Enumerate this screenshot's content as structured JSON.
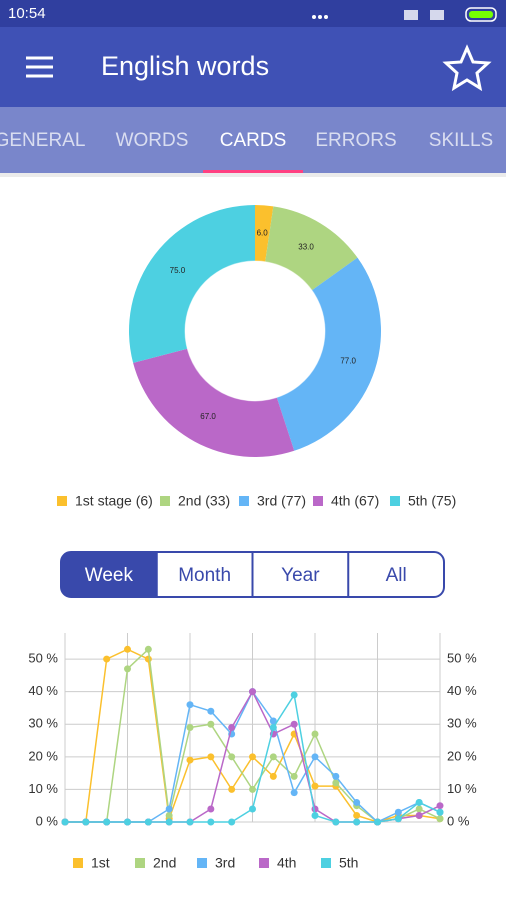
{
  "status_bar": {
    "time": "10:54"
  },
  "app_bar": {
    "title": "English words"
  },
  "tabs": {
    "items": [
      "GENERAL",
      "WORDS",
      "CARDS",
      "ERRORS",
      "SKILLS"
    ],
    "selected": 2
  },
  "range_tabs": {
    "items": [
      "Week",
      "Month",
      "Year",
      "All"
    ],
    "selected": 0
  },
  "chart_data": [
    {
      "type": "pie",
      "donut": true,
      "categories": [
        "1st stage (6)",
        "2nd (33)",
        "3rd (77)",
        "4th (67)",
        "5th (75)"
      ],
      "values": [
        6,
        33,
        77,
        67,
        75
      ],
      "value_labels": [
        "6.0",
        "33.0",
        "77.0",
        "67.0",
        "75.0"
      ],
      "colors": [
        "#fbc02d",
        "#aed581",
        "#64b5f6",
        "#ba68c8",
        "#4dd0e1"
      ]
    },
    {
      "type": "line",
      "categories": [
        null,
        null,
        null,
        null,
        null,
        null,
        null,
        null,
        null,
        null,
        null,
        null,
        null,
        null,
        null,
        null,
        null,
        null,
        null
      ],
      "ylim": [
        0,
        58
      ],
      "yticks": [
        {
          "value": 0,
          "label": "0 %"
        },
        {
          "value": 10,
          "label": "10 %"
        },
        {
          "value": 20,
          "label": "20 %"
        },
        {
          "value": 30,
          "label": "30 %"
        },
        {
          "value": 40,
          "label": "40 %"
        },
        {
          "value": 50,
          "label": "50 %"
        }
      ],
      "y2lim": [
        0,
        58
      ],
      "y2ticks": [
        {
          "value": 0,
          "label": "0 %"
        },
        {
          "value": 10,
          "label": "10 %"
        },
        {
          "value": 20,
          "label": "20 %"
        },
        {
          "value": 30,
          "label": "30 %"
        },
        {
          "value": 40,
          "label": "40 %"
        },
        {
          "value": 50,
          "label": "50 %"
        }
      ],
      "grid": true,
      "series": [
        {
          "name": "1st",
          "color": "#fbc02d",
          "values": [
            0,
            0,
            50,
            53,
            50,
            1,
            19,
            20,
            10,
            20,
            14,
            27,
            11,
            11,
            2,
            0,
            2,
            2,
            1
          ]
        },
        {
          "name": "2nd",
          "color": "#aed581",
          "values": [
            0,
            0,
            0,
            47,
            53,
            2,
            29,
            30,
            20,
            10,
            20,
            14,
            27,
            12,
            5,
            0,
            1,
            4,
            1
          ]
        },
        {
          "name": "3rd",
          "color": "#64b5f6",
          "values": [
            0,
            0,
            0,
            0,
            0,
            4,
            36,
            34,
            27,
            40,
            31,
            9,
            20,
            14,
            6,
            0,
            3,
            6,
            3
          ]
        },
        {
          "name": "4th",
          "color": "#ba68c8",
          "values": [
            0,
            0,
            0,
            0,
            0,
            0,
            0,
            4,
            29,
            40,
            27,
            30,
            4,
            0,
            0,
            0,
            1,
            2,
            5
          ]
        },
        {
          "name": "5th",
          "color": "#4dd0e1",
          "values": [
            0,
            0,
            0,
            0,
            0,
            0,
            0,
            0,
            0,
            4,
            29,
            39,
            2,
            0,
            0,
            0,
            1,
            6,
            3
          ]
        }
      ]
    }
  ]
}
